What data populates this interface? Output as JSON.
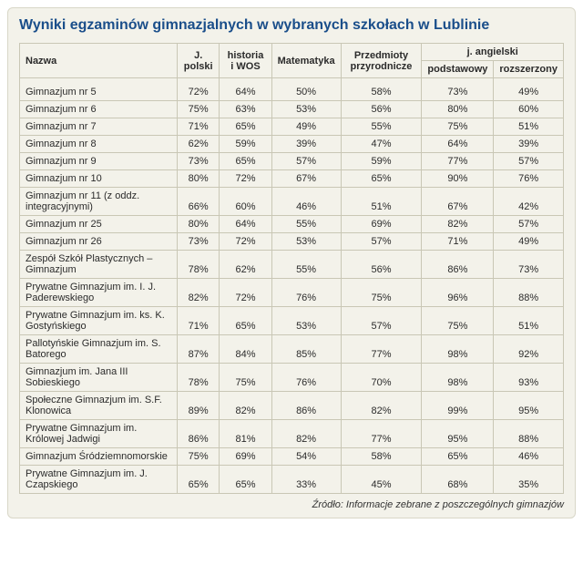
{
  "title": "Wyniki egzaminów gimnazjalnych w wybranych szkołach w Lublinie",
  "source": "Źródło: Informacje zebrane z poszczególnych gimnazjów",
  "columns": {
    "name": "Nazwa",
    "polish": "J. polski",
    "history": "historia i WOS",
    "math": "Matematyka",
    "science": "Przedmioty przyrodnicze",
    "english_group": "j. angielski",
    "english_basic": "podstawowy",
    "english_ext": "rozszerzony"
  },
  "rows": [
    {
      "name": "Gimnazjum nr 5",
      "polish": "72%",
      "history": "64%",
      "math": "50%",
      "science": "58%",
      "eng_basic": "73%",
      "eng_ext": "49%"
    },
    {
      "name": "Gimnazjum nr 6",
      "polish": "75%",
      "history": "63%",
      "math": "53%",
      "science": "56%",
      "eng_basic": "80%",
      "eng_ext": "60%"
    },
    {
      "name": "Gimnazjum nr 7",
      "polish": "71%",
      "history": "65%",
      "math": "49%",
      "science": "55%",
      "eng_basic": "75%",
      "eng_ext": "51%"
    },
    {
      "name": "Gimnazjum nr 8",
      "polish": "62%",
      "history": "59%",
      "math": "39%",
      "science": "47%",
      "eng_basic": "64%",
      "eng_ext": "39%"
    },
    {
      "name": "Gimnazjum nr 9",
      "polish": "73%",
      "history": "65%",
      "math": "57%",
      "science": "59%",
      "eng_basic": "77%",
      "eng_ext": "57%"
    },
    {
      "name": "Gimnazjum nr 10",
      "polish": "80%",
      "history": "72%",
      "math": "67%",
      "science": "65%",
      "eng_basic": "90%",
      "eng_ext": "76%"
    },
    {
      "name": "Gimnazjum nr 11 (z oddz. integracyjnymi)",
      "polish": "66%",
      "history": "60%",
      "math": "46%",
      "science": "51%",
      "eng_basic": "67%",
      "eng_ext": "42%"
    },
    {
      "name": "Gimnazjum nr 25",
      "polish": "80%",
      "history": "64%",
      "math": "55%",
      "science": "69%",
      "eng_basic": "82%",
      "eng_ext": "57%"
    },
    {
      "name": "Gimnazjum nr 26",
      "polish": "73%",
      "history": "72%",
      "math": "53%",
      "science": "57%",
      "eng_basic": "71%",
      "eng_ext": "49%"
    },
    {
      "name": "Zespół Szkół Plastycznych – Gimnazjum",
      "polish": "78%",
      "history": "62%",
      "math": "55%",
      "science": "56%",
      "eng_basic": "86%",
      "eng_ext": "73%"
    },
    {
      "name": "Prywatne Gimnazjum im. I. J. Paderewskiego",
      "polish": "82%",
      "history": "72%",
      "math": "76%",
      "science": "75%",
      "eng_basic": "96%",
      "eng_ext": "88%"
    },
    {
      "name": "Prywatne Gimnazjum im. ks. K. Gostyńskiego",
      "polish": "71%",
      "history": "65%",
      "math": "53%",
      "science": "57%",
      "eng_basic": "75%",
      "eng_ext": "51%"
    },
    {
      "name": "Pallotyńskie Gimnazjum im. S. Batorego",
      "polish": "87%",
      "history": "84%",
      "math": "85%",
      "science": "77%",
      "eng_basic": "98%",
      "eng_ext": "92%"
    },
    {
      "name": "Gimnazjum im. Jana III Sobieskiego",
      "polish": "78%",
      "history": "75%",
      "math": "76%",
      "science": "70%",
      "eng_basic": "98%",
      "eng_ext": "93%"
    },
    {
      "name": "Społeczne Gimnazjum im. S.F. Klonowica",
      "polish": "89%",
      "history": "82%",
      "math": "86%",
      "science": "82%",
      "eng_basic": "99%",
      "eng_ext": "95%"
    },
    {
      "name": "Prywatne Gimnazjum im. Królowej Jadwigi",
      "polish": "86%",
      "history": "81%",
      "math": "82%",
      "science": "77%",
      "eng_basic": "95%",
      "eng_ext": "88%"
    },
    {
      "name": "Gimnazjum Śródziemnomorskie",
      "polish": "75%",
      "history": "69%",
      "math": "54%",
      "science": "58%",
      "eng_basic": "65%",
      "eng_ext": "46%"
    },
    {
      "name": "Prywatne Gimnazjum im. J. Czapskiego",
      "polish": "65%",
      "history": "65%",
      "math": "33%",
      "science": "45%",
      "eng_basic": "68%",
      "eng_ext": "35%"
    }
  ]
}
